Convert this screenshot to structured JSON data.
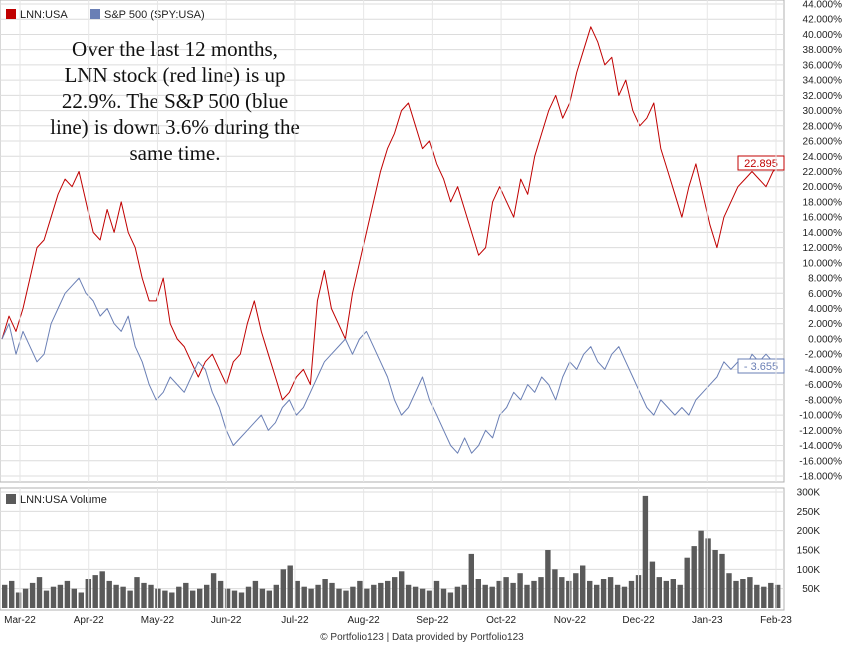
{
  "chart_data": [
    {
      "type": "line",
      "legend": [
        {
          "name": "LNN:USA",
          "color": "#c00000"
        },
        {
          "name": "S&P 500 (SPY:USA)",
          "color": "#6a7fb5"
        }
      ],
      "legend_placement": "top-left",
      "annotation": [
        "Over the last 12 months,",
        "LNN stock (red line) is up",
        "22.9%. The S&P 500 (blue",
        "line) is down 3.6% during the",
        "same time."
      ],
      "ylim": [
        -18,
        44
      ],
      "y_ticks": [
        "44.000%",
        "42.000%",
        "40.000%",
        "38.000%",
        "36.000%",
        "34.000%",
        "32.000%",
        "30.000%",
        "28.000%",
        "26.000%",
        "24.000%",
        "22.000%",
        "20.000%",
        "18.000%",
        "16.000%",
        "14.000%",
        "12.000%",
        "10.000%",
        "8.000%",
        "6.000%",
        "4.000%",
        "2.000%",
        "0.000%",
        "-2.000%",
        "-4.000%",
        "-6.000%",
        "-8.000%",
        "-10.000%",
        "-12.000%",
        "-14.000%",
        "-16.000%",
        "-18.000%"
      ],
      "x_ticks": [
        "Mar-22",
        "Apr-22",
        "May-22",
        "Jun-22",
        "Jul-22",
        "Aug-22",
        "Sep-22",
        "Oct-22",
        "Nov-22",
        "Dec-22",
        "Jan-23",
        "Feb-23"
      ],
      "grid": true,
      "series": [
        {
          "name": "LNN:USA",
          "color": "#c00000",
          "last_value_label": "22.895",
          "points": [
            [
              0,
              0
            ],
            [
              1,
              3
            ],
            [
              2,
              1
            ],
            [
              3,
              4
            ],
            [
              4,
              8
            ],
            [
              5,
              12
            ],
            [
              6,
              13
            ],
            [
              7,
              16
            ],
            [
              8,
              19
            ],
            [
              9,
              21
            ],
            [
              10,
              20
            ],
            [
              11,
              22
            ],
            [
              12,
              18
            ],
            [
              13,
              14
            ],
            [
              14,
              13
            ],
            [
              15,
              17
            ],
            [
              16,
              14
            ],
            [
              17,
              18
            ],
            [
              18,
              14
            ],
            [
              19,
              12
            ],
            [
              20,
              8
            ],
            [
              21,
              5
            ],
            [
              22,
              5
            ],
            [
              23,
              8
            ],
            [
              24,
              2
            ],
            [
              25,
              0
            ],
            [
              26,
              -1
            ],
            [
              27,
              -3
            ],
            [
              28,
              -5
            ],
            [
              29,
              -3
            ],
            [
              30,
              -2
            ],
            [
              31,
              -4
            ],
            [
              32,
              -6
            ],
            [
              33,
              -3
            ],
            [
              34,
              -2
            ],
            [
              35,
              2
            ],
            [
              36,
              5
            ],
            [
              37,
              1
            ],
            [
              38,
              -2
            ],
            [
              39,
              -5
            ],
            [
              40,
              -8
            ],
            [
              41,
              -7
            ],
            [
              42,
              -5
            ],
            [
              43,
              -4
            ],
            [
              44,
              -6
            ],
            [
              45,
              5
            ],
            [
              46,
              9
            ],
            [
              47,
              4
            ],
            [
              48,
              2
            ],
            [
              49,
              0
            ],
            [
              50,
              6
            ],
            [
              51,
              10
            ],
            [
              52,
              14
            ],
            [
              53,
              18
            ],
            [
              54,
              22
            ],
            [
              55,
              25
            ],
            [
              56,
              27
            ],
            [
              57,
              30
            ],
            [
              58,
              31
            ],
            [
              59,
              28
            ],
            [
              60,
              25
            ],
            [
              61,
              26
            ],
            [
              62,
              23
            ],
            [
              63,
              21
            ],
            [
              64,
              18
            ],
            [
              65,
              20
            ],
            [
              66,
              17
            ],
            [
              67,
              14
            ],
            [
              68,
              11
            ],
            [
              69,
              12
            ],
            [
              70,
              18
            ],
            [
              71,
              20
            ],
            [
              72,
              18
            ],
            [
              73,
              16
            ],
            [
              74,
              21
            ],
            [
              75,
              19
            ],
            [
              76,
              24
            ],
            [
              77,
              27
            ],
            [
              78,
              30
            ],
            [
              79,
              32
            ],
            [
              80,
              29
            ],
            [
              81,
              31
            ],
            [
              82,
              35
            ],
            [
              83,
              38
            ],
            [
              84,
              41
            ],
            [
              85,
              39
            ],
            [
              86,
              36
            ],
            [
              87,
              37
            ],
            [
              88,
              32
            ],
            [
              89,
              34
            ],
            [
              90,
              30
            ],
            [
              91,
              28
            ],
            [
              92,
              29
            ],
            [
              93,
              31
            ],
            [
              94,
              25
            ],
            [
              95,
              22
            ],
            [
              96,
              19
            ],
            [
              97,
              16
            ],
            [
              98,
              20
            ],
            [
              99,
              23
            ],
            [
              100,
              19
            ],
            [
              101,
              15
            ],
            [
              102,
              12
            ],
            [
              103,
              16
            ],
            [
              104,
              18
            ],
            [
              105,
              20
            ],
            [
              106,
              21
            ],
            [
              107,
              22
            ],
            [
              108,
              21
            ],
            [
              109,
              20
            ],
            [
              110,
              22
            ],
            [
              111,
              22.9
            ]
          ]
        },
        {
          "name": "S&P 500 (SPY:USA)",
          "color": "#6a7fb5",
          "last_value_label": "- 3.655",
          "points": [
            [
              0,
              0
            ],
            [
              1,
              2
            ],
            [
              2,
              -2
            ],
            [
              3,
              1
            ],
            [
              4,
              -1
            ],
            [
              5,
              -3
            ],
            [
              6,
              -2
            ],
            [
              7,
              2
            ],
            [
              8,
              4
            ],
            [
              9,
              6
            ],
            [
              10,
              7
            ],
            [
              11,
              8
            ],
            [
              12,
              6
            ],
            [
              13,
              5
            ],
            [
              14,
              3
            ],
            [
              15,
              4
            ],
            [
              16,
              2
            ],
            [
              17,
              1
            ],
            [
              18,
              3
            ],
            [
              19,
              -1
            ],
            [
              20,
              -3
            ],
            [
              21,
              -6
            ],
            [
              22,
              -8
            ],
            [
              23,
              -7
            ],
            [
              24,
              -5
            ],
            [
              25,
              -6
            ],
            [
              26,
              -7
            ],
            [
              27,
              -5
            ],
            [
              28,
              -3
            ],
            [
              29,
              -4
            ],
            [
              30,
              -7
            ],
            [
              31,
              -9
            ],
            [
              32,
              -12
            ],
            [
              33,
              -14
            ],
            [
              34,
              -13
            ],
            [
              35,
              -12
            ],
            [
              36,
              -11
            ],
            [
              37,
              -10
            ],
            [
              38,
              -12
            ],
            [
              39,
              -11
            ],
            [
              40,
              -9
            ],
            [
              41,
              -8
            ],
            [
              42,
              -10
            ],
            [
              43,
              -9
            ],
            [
              44,
              -7
            ],
            [
              45,
              -5
            ],
            [
              46,
              -3
            ],
            [
              47,
              -2
            ],
            [
              48,
              -1
            ],
            [
              49,
              0
            ],
            [
              50,
              -2
            ],
            [
              51,
              0
            ],
            [
              52,
              1
            ],
            [
              53,
              -1
            ],
            [
              54,
              -3
            ],
            [
              55,
              -5
            ],
            [
              56,
              -8
            ],
            [
              57,
              -10
            ],
            [
              58,
              -9
            ],
            [
              59,
              -7
            ],
            [
              60,
              -5
            ],
            [
              61,
              -8
            ],
            [
              62,
              -10
            ],
            [
              63,
              -12
            ],
            [
              64,
              -14
            ],
            [
              65,
              -15
            ],
            [
              66,
              -13
            ],
            [
              67,
              -15
            ],
            [
              68,
              -14
            ],
            [
              69,
              -12
            ],
            [
              70,
              -13
            ],
            [
              71,
              -10
            ],
            [
              72,
              -9
            ],
            [
              73,
              -7
            ],
            [
              74,
              -8
            ],
            [
              75,
              -6
            ],
            [
              76,
              -7
            ],
            [
              77,
              -5
            ],
            [
              78,
              -6
            ],
            [
              79,
              -8
            ],
            [
              80,
              -5
            ],
            [
              81,
              -3
            ],
            [
              82,
              -4
            ],
            [
              83,
              -2
            ],
            [
              84,
              -1
            ],
            [
              85,
              -3
            ],
            [
              86,
              -4
            ],
            [
              87,
              -2
            ],
            [
              88,
              -1
            ],
            [
              89,
              -3
            ],
            [
              90,
              -5
            ],
            [
              91,
              -7
            ],
            [
              92,
              -9
            ],
            [
              93,
              -10
            ],
            [
              94,
              -8
            ],
            [
              95,
              -9
            ],
            [
              96,
              -10
            ],
            [
              97,
              -9
            ],
            [
              98,
              -10
            ],
            [
              99,
              -8
            ],
            [
              100,
              -7
            ],
            [
              101,
              -6
            ],
            [
              102,
              -5
            ],
            [
              103,
              -3
            ],
            [
              104,
              -4
            ],
            [
              105,
              -3
            ],
            [
              106,
              -4
            ],
            [
              107,
              -2
            ],
            [
              108,
              -3
            ],
            [
              109,
              -2
            ],
            [
              110,
              -3
            ],
            [
              111,
              -3.655
            ]
          ]
        }
      ]
    },
    {
      "type": "bar",
      "legend": [
        {
          "name": "LNN:USA Volume",
          "color": "#5a5a5a"
        }
      ],
      "ylim": [
        0,
        300000
      ],
      "y_ticks": [
        "300K",
        "250K",
        "200K",
        "150K",
        "100K",
        "50K"
      ],
      "values": [
        60000,
        70000,
        40000,
        50000,
        65000,
        80000,
        45000,
        55000,
        60000,
        70000,
        50000,
        40000,
        75000,
        85000,
        95000,
        70000,
        60000,
        55000,
        45000,
        80000,
        65000,
        60000,
        50000,
        45000,
        40000,
        55000,
        65000,
        45000,
        50000,
        60000,
        90000,
        70000,
        50000,
        45000,
        40000,
        55000,
        70000,
        50000,
        45000,
        60000,
        100000,
        110000,
        70000,
        55000,
        50000,
        60000,
        75000,
        65000,
        50000,
        45000,
        55000,
        70000,
        50000,
        60000,
        65000,
        70000,
        80000,
        95000,
        60000,
        55000,
        50000,
        45000,
        70000,
        50000,
        40000,
        55000,
        60000,
        140000,
        75000,
        60000,
        55000,
        70000,
        80000,
        65000,
        90000,
        60000,
        70000,
        80000,
        150000,
        100000,
        80000,
        70000,
        90000,
        110000,
        70000,
        60000,
        75000,
        80000,
        60000,
        55000,
        70000,
        85000,
        290000,
        120000,
        80000,
        70000,
        75000,
        60000,
        130000,
        160000,
        200000,
        180000,
        150000,
        140000,
        90000,
        70000,
        75000,
        80000,
        60000,
        55000,
        65000,
        60000
      ]
    }
  ],
  "footer": {
    "credit": "© Portfolio123 | Data provided by Portfolio123"
  }
}
